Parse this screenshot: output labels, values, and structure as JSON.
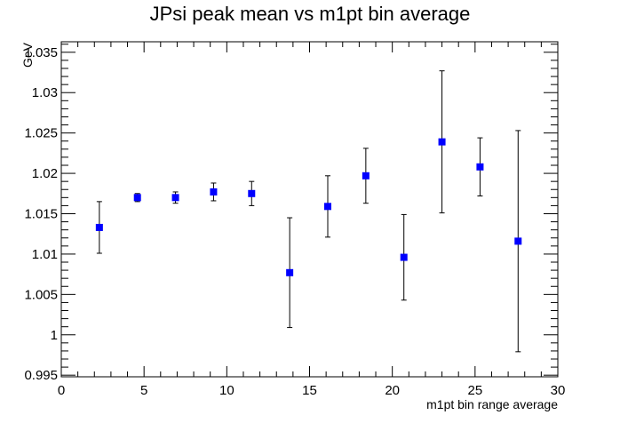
{
  "chart_data": {
    "type": "scatter",
    "title": "JPsi peak mean vs m1pt bin average",
    "xlabel": "m1pt bin range average",
    "ylabel": "GeV",
    "xlim": [
      0,
      30
    ],
    "ylim": [
      0.9948,
      1.0363
    ],
    "x_ticks": [
      0,
      5,
      10,
      15,
      20,
      25,
      30
    ],
    "x_tick_labels": [
      "0",
      "5",
      "10",
      "15",
      "20",
      "25",
      "30"
    ],
    "y_ticks": [
      0.995,
      1.0,
      1.005,
      1.01,
      1.015,
      1.02,
      1.025,
      1.03,
      1.035
    ],
    "y_tick_labels": [
      "0.995",
      "1",
      "1.005",
      "1.01",
      "1.015",
      "1.02",
      "1.025",
      "1.03",
      "1.035"
    ],
    "grid": false,
    "legend": "none",
    "marker": "square",
    "marker_color": "#0000ff",
    "points": [
      {
        "x": 2.3,
        "y": 1.0133,
        "err": 0.0032
      },
      {
        "x": 4.6,
        "y": 1.017,
        "err": 0.0005
      },
      {
        "x": 6.9,
        "y": 1.017,
        "err": 0.0007
      },
      {
        "x": 9.2,
        "y": 1.0177,
        "err": 0.0011
      },
      {
        "x": 11.5,
        "y": 1.0175,
        "err": 0.0015
      },
      {
        "x": 13.8,
        "y": 1.0077,
        "err": 0.0068
      },
      {
        "x": 16.1,
        "y": 1.0159,
        "err": 0.0038
      },
      {
        "x": 18.4,
        "y": 1.0197,
        "err": 0.0034
      },
      {
        "x": 20.7,
        "y": 1.0096,
        "err": 0.0053
      },
      {
        "x": 23.0,
        "y": 1.0239,
        "err": 0.0088
      },
      {
        "x": 25.3,
        "y": 1.0208,
        "err": 0.0036
      },
      {
        "x": 27.6,
        "y": 1.0116,
        "err": 0.0137
      }
    ]
  }
}
